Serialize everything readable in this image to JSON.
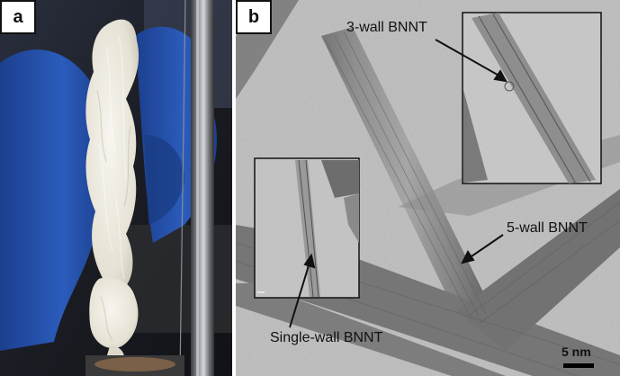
{
  "panels": {
    "a": {
      "label": "a"
    },
    "b": {
      "label": "b"
    }
  },
  "annotations": {
    "three_wall": "3-wall BNNT",
    "five_wall": "5-wall BNNT",
    "single_wall": "Single-wall BNNT"
  },
  "scale_bar": {
    "label": "5 nm"
  },
  "colors": {
    "glove_blue": "#2450a8",
    "background_dark": "#1a1a22",
    "cotton_white": "#ece9e0",
    "rod_metal": "#7d7f85",
    "tem_gray": "#b9b9b9"
  }
}
